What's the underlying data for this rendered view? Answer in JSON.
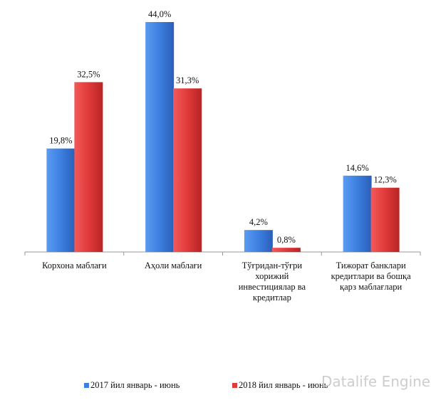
{
  "chart_data": {
    "type": "bar",
    "categories": [
      "Корхона маблағи",
      "Аҳоли маблағи",
      "Тўғридан-тўғри хорижий инвестициялар ва кредитлар",
      "Тижорат банклари кредитлари ва бошқа қарз маблағлари"
    ],
    "series": [
      {
        "name": "2017 йил январь - июнь",
        "values": [
          19.8,
          44.0,
          4.2,
          14.6
        ],
        "labels": [
          "19,8%",
          "44,0%",
          "4,2%",
          "14,6%"
        ],
        "color": "#3d7fe0"
      },
      {
        "name": "2018 йил январь - июнь",
        "values": [
          32.5,
          31.3,
          0.8,
          12.3
        ],
        "labels": [
          "32,5%",
          "31,3%",
          "0,8%",
          "12,3%"
        ],
        "color": "#e03a3a"
      }
    ],
    "ylim": [
      0,
      44
    ],
    "legend": "bottom",
    "grid": false
  },
  "watermark": "Datalife Engine"
}
